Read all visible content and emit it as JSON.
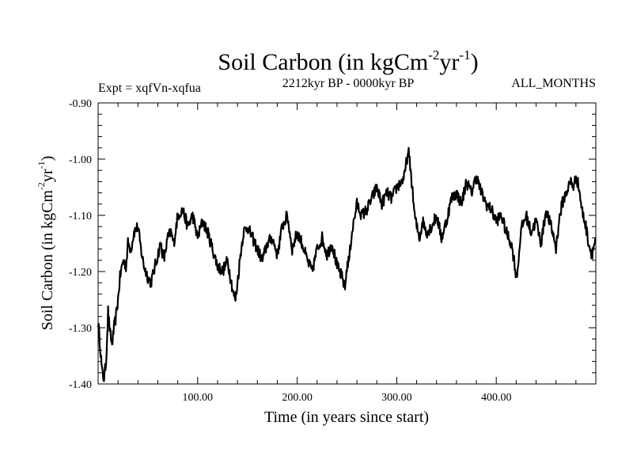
{
  "chart_data": {
    "type": "line",
    "title_parts": [
      "Soil Carbon (in kgCm",
      "-2",
      "yr",
      "-1",
      ")"
    ],
    "subtitle_left": "Expt = xqfVn-xqfua",
    "subtitle_center": "2212kyr BP - 0000kyr BP",
    "subtitle_right": "ALL_MONTHS",
    "xlabel": "Time (in years since start)",
    "ylabel_parts": [
      "Soil Carbon (in kgCm",
      "-2",
      "yr",
      "-1",
      ")"
    ],
    "xlim": [
      0,
      500
    ],
    "ylim": [
      -1.4,
      -0.9
    ],
    "x_ticks": [
      100,
      200,
      300,
      400
    ],
    "x_tick_labels": [
      "100.00",
      "200.00",
      "300.00",
      "400.00"
    ],
    "y_ticks": [
      -1.4,
      -1.3,
      -1.2,
      -1.1,
      -1.0,
      -0.9
    ],
    "y_tick_labels": [
      "-1.40",
      "-1.30",
      "-1.20",
      "-1.10",
      "-1.00",
      "-0.90"
    ],
    "series": [
      {
        "name": "Soil Carbon",
        "color": "#000000",
        "x": [
          0,
          2,
          4,
          6,
          8,
          10,
          12,
          14,
          16,
          18,
          20,
          22,
          25,
          28,
          30,
          33,
          36,
          40,
          43,
          46,
          50,
          53,
          56,
          60,
          63,
          66,
          70,
          73,
          76,
          80,
          85,
          90,
          95,
          100,
          105,
          110,
          115,
          120,
          125,
          130,
          133,
          136,
          138,
          140,
          143,
          146,
          150,
          155,
          160,
          165,
          170,
          175,
          180,
          185,
          190,
          195,
          200,
          205,
          210,
          215,
          220,
          225,
          230,
          235,
          240,
          245,
          248,
          250,
          252,
          255,
          258,
          260,
          265,
          270,
          275,
          280,
          285,
          290,
          295,
          300,
          305,
          308,
          310,
          312,
          314,
          316,
          318,
          320,
          323,
          326,
          330,
          335,
          340,
          345,
          350,
          355,
          360,
          365,
          370,
          375,
          380,
          385,
          390,
          395,
          400,
          405,
          410,
          415,
          418,
          420,
          422,
          424,
          426,
          430,
          435,
          440,
          445,
          450,
          455,
          458,
          460,
          463,
          466,
          470,
          475,
          478,
          480,
          483,
          486,
          490,
          493,
          496,
          500
        ],
        "y": [
          -1.29,
          -1.33,
          -1.38,
          -1.39,
          -1.36,
          -1.27,
          -1.31,
          -1.33,
          -1.3,
          -1.28,
          -1.25,
          -1.21,
          -1.18,
          -1.19,
          -1.15,
          -1.16,
          -1.13,
          -1.12,
          -1.16,
          -1.19,
          -1.21,
          -1.22,
          -1.2,
          -1.17,
          -1.15,
          -1.18,
          -1.14,
          -1.13,
          -1.15,
          -1.1,
          -1.09,
          -1.12,
          -1.1,
          -1.14,
          -1.11,
          -1.13,
          -1.16,
          -1.19,
          -1.2,
          -1.18,
          -1.21,
          -1.24,
          -1.25,
          -1.22,
          -1.17,
          -1.13,
          -1.12,
          -1.14,
          -1.16,
          -1.18,
          -1.15,
          -1.14,
          -1.17,
          -1.12,
          -1.1,
          -1.16,
          -1.13,
          -1.15,
          -1.18,
          -1.2,
          -1.16,
          -1.14,
          -1.17,
          -1.15,
          -1.19,
          -1.21,
          -1.23,
          -1.19,
          -1.18,
          -1.13,
          -1.1,
          -1.08,
          -1.1,
          -1.09,
          -1.07,
          -1.05,
          -1.08,
          -1.06,
          -1.07,
          -1.05,
          -1.04,
          -1.03,
          -1.0,
          -0.99,
          -1.02,
          -1.06,
          -1.1,
          -1.12,
          -1.14,
          -1.11,
          -1.13,
          -1.12,
          -1.1,
          -1.14,
          -1.11,
          -1.07,
          -1.06,
          -1.08,
          -1.04,
          -1.06,
          -1.03,
          -1.06,
          -1.08,
          -1.09,
          -1.11,
          -1.1,
          -1.13,
          -1.15,
          -1.18,
          -1.21,
          -1.19,
          -1.14,
          -1.12,
          -1.1,
          -1.13,
          -1.11,
          -1.15,
          -1.09,
          -1.12,
          -1.14,
          -1.16,
          -1.11,
          -1.08,
          -1.06,
          -1.04,
          -1.05,
          -1.03,
          -1.05,
          -1.09,
          -1.12,
          -1.15,
          -1.17,
          -1.14
        ]
      }
    ]
  }
}
